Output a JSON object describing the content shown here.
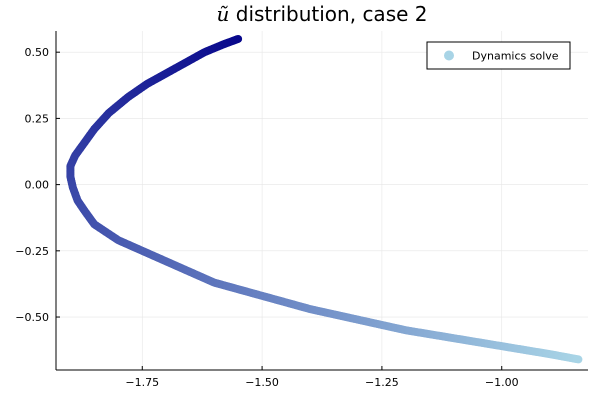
{
  "chart_data": {
    "type": "scatter",
    "title_symbol": "ũ",
    "title_rest": " distribution, case 2",
    "xlabel": "",
    "ylabel": "",
    "xlim": [
      -1.93,
      -0.82
    ],
    "ylim": [
      -0.7,
      0.58
    ],
    "xticks": [
      -1.75,
      -1.5,
      -1.25,
      -1.0
    ],
    "xtick_labels": [
      "−1.75",
      "−1.50",
      "−1.25",
      "−1.00"
    ],
    "yticks": [
      0.5,
      0.25,
      0.0,
      -0.25,
      -0.5
    ],
    "ytick_labels": [
      "0.50",
      "0.25",
      "0.00",
      "−0.25",
      "−0.50"
    ],
    "grid": true,
    "legend_position": "top-right",
    "series": [
      {
        "name": "Dynamics solve",
        "legend_color": "#a8d4e6",
        "color_start": "#08088c",
        "color_end": "#a8d4e6",
        "points": [
          [
            -1.55,
            0.55
          ],
          [
            -1.58,
            0.53
          ],
          [
            -1.62,
            0.5
          ],
          [
            -1.66,
            0.46
          ],
          [
            -1.7,
            0.42
          ],
          [
            -1.74,
            0.38
          ],
          [
            -1.78,
            0.33
          ],
          [
            -1.82,
            0.27
          ],
          [
            -1.85,
            0.21
          ],
          [
            -1.87,
            0.16
          ],
          [
            -1.89,
            0.11
          ],
          [
            -1.9,
            0.07
          ],
          [
            -1.9,
            0.03
          ],
          [
            -1.895,
            -0.01
          ],
          [
            -1.885,
            -0.06
          ],
          [
            -1.87,
            -0.1
          ],
          [
            -1.85,
            -0.15
          ],
          [
            -1.8,
            -0.21
          ],
          [
            -1.75,
            -0.25
          ],
          [
            -1.7,
            -0.29
          ],
          [
            -1.65,
            -0.33
          ],
          [
            -1.6,
            -0.37
          ],
          [
            -1.5,
            -0.42
          ],
          [
            -1.4,
            -0.47
          ],
          [
            -1.3,
            -0.51
          ],
          [
            -1.2,
            -0.55
          ],
          [
            -1.1,
            -0.58
          ],
          [
            -1.0,
            -0.61
          ],
          [
            -0.9,
            -0.64
          ],
          [
            -0.84,
            -0.66
          ]
        ]
      }
    ]
  }
}
